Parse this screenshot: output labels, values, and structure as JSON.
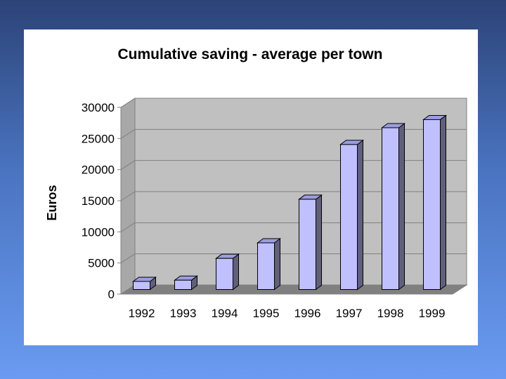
{
  "chart_data": {
    "type": "bar",
    "title": "Cumulative saving - average per town",
    "ylabel": "Euros",
    "xlabel": "",
    "categories": [
      "1992",
      "1993",
      "1994",
      "1995",
      "1996",
      "1997",
      "1998",
      "1999"
    ],
    "values": [
      1300,
      1500,
      5000,
      7500,
      14500,
      23300,
      26000,
      27300
    ],
    "ylim": [
      0,
      30000
    ],
    "yticks": [
      "0",
      "5000",
      "10000",
      "15000",
      "20000",
      "25000",
      "30000"
    ],
    "grid": true,
    "legend": "none",
    "three_d": true,
    "colors": {
      "bar_front": "#c0c0ff",
      "bar_side": "#60607c",
      "bar_top": "#9c9ce0",
      "wall": "#c0c0c0",
      "floor": "#808080",
      "gridline": "#808080",
      "outline": "#000000"
    }
  }
}
